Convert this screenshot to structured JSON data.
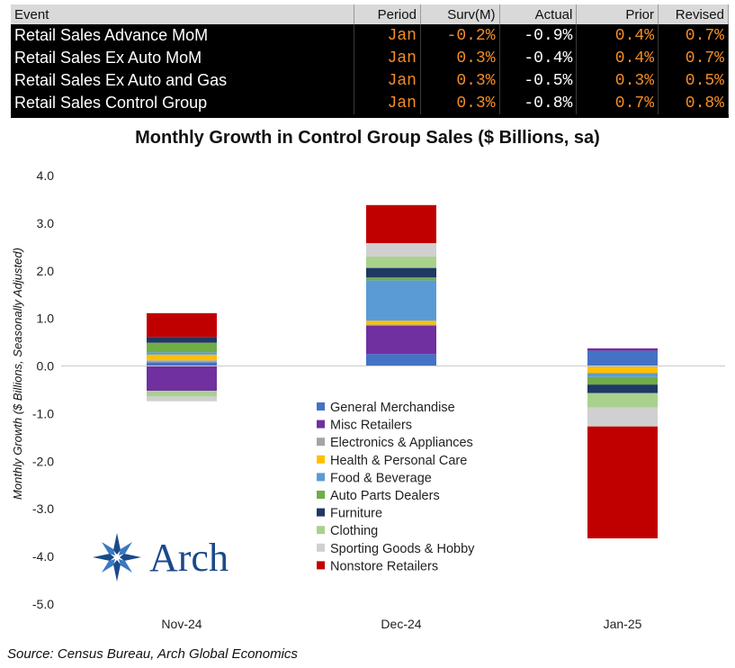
{
  "table": {
    "headers": [
      "Event",
      "Period",
      "Surv(M)",
      "Actual",
      "Prior",
      "Revised"
    ],
    "rows": [
      [
        "Retail Sales Advance MoM",
        "Jan",
        "-0.2%",
        "-0.9%",
        "0.4%",
        "0.7%"
      ],
      [
        "Retail Sales Ex Auto MoM",
        "Jan",
        "0.3%",
        "-0.4%",
        "0.4%",
        "0.7%"
      ],
      [
        "Retail Sales Ex Auto and Gas",
        "Jan",
        "0.3%",
        "-0.5%",
        "0.3%",
        "0.5%"
      ],
      [
        "Retail Sales Control Group",
        "Jan",
        "0.3%",
        "-0.8%",
        "0.7%",
        "0.8%"
      ]
    ]
  },
  "chart_data": {
    "type": "bar",
    "stacked": true,
    "title": "Monthly Growth in Control Group Sales ($ Billions, sa)",
    "ylabel": "Monthly Growth ($ Billions, Seasonally Adjusted)",
    "ylim": [
      -5.0,
      4.0
    ],
    "yticks": [
      "4.0",
      "3.0",
      "2.0",
      "1.0",
      "0.0",
      "-1.0",
      "-2.0",
      "-3.0",
      "-4.0",
      "-5.0"
    ],
    "categories": [
      "Nov-24",
      "Dec-24",
      "Jan-25"
    ],
    "legend_position": "center",
    "series": [
      {
        "name": "General Merchandise",
        "color": "#4472c4",
        "values": [
          0.08,
          0.25,
          0.32
        ]
      },
      {
        "name": "Misc Retailers",
        "color": "#7030a0",
        "values": [
          -0.52,
          0.6,
          0.05
        ]
      },
      {
        "name": "Electronics & Appliances",
        "color": "#a5a5a5",
        "values": [
          0.04,
          0.02,
          -0.02
        ]
      },
      {
        "name": "Health & Personal Care",
        "color": "#ffc000",
        "values": [
          0.12,
          0.08,
          -0.13
        ]
      },
      {
        "name": "Food & Beverage",
        "color": "#5b9bd5",
        "values": [
          0.05,
          0.85,
          -0.08
        ]
      },
      {
        "name": "Auto Parts Dealers",
        "color": "#70ad47",
        "values": [
          0.2,
          0.06,
          -0.16
        ]
      },
      {
        "name": "Furniture",
        "color": "#1f3864",
        "values": [
          0.12,
          0.2,
          -0.18
        ]
      },
      {
        "name": "Clothing",
        "color": "#a9d18e",
        "values": [
          -0.12,
          0.24,
          -0.3
        ]
      },
      {
        "name": "Sporting Goods & Hobby",
        "color": "#d0d0d0",
        "values": [
          -0.1,
          0.28,
          -0.4
        ]
      },
      {
        "name": "Nonstore Retailers",
        "color": "#c00000",
        "values": [
          0.5,
          0.8,
          -2.35
        ]
      }
    ]
  },
  "logo": {
    "text": "Arch"
  },
  "source": "Source: Census Bureau, Arch Global Economics"
}
